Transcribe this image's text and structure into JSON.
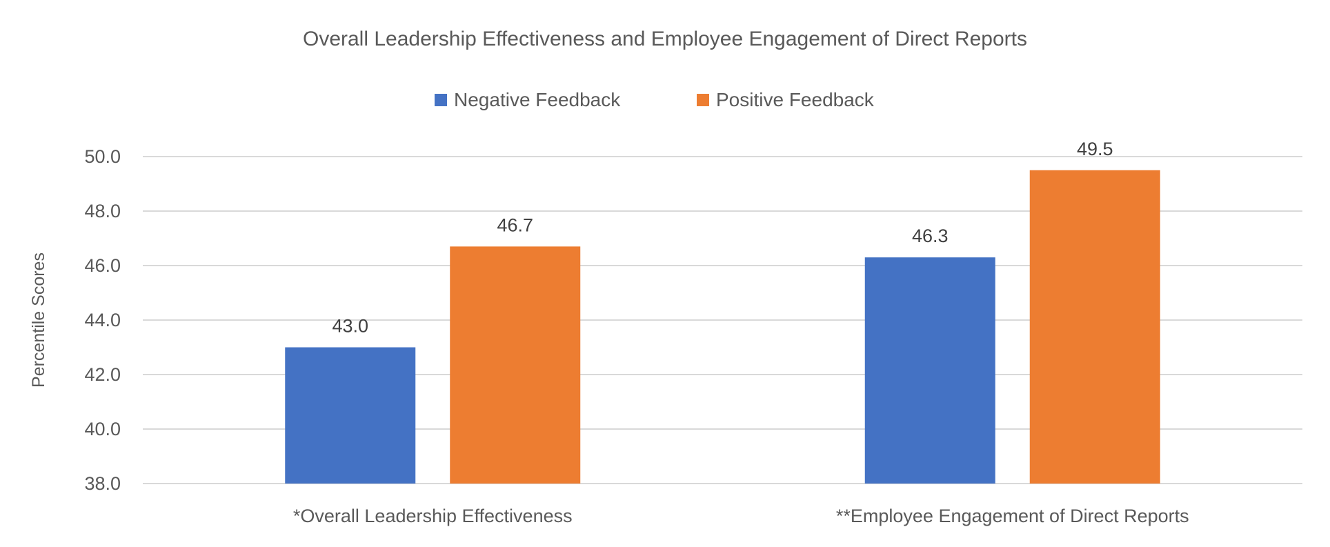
{
  "chart_data": {
    "type": "bar",
    "title": "Overall Leadership Effectiveness and Employee Engagement of Direct Reports",
    "xlabel": "",
    "ylabel": "Percentile Scores",
    "ylim": [
      38.0,
      50.0
    ],
    "yticks": [
      "38.0",
      "40.0",
      "42.0",
      "44.0",
      "46.0",
      "48.0",
      "50.0"
    ],
    "grid": true,
    "legend_position": "top",
    "categories": [
      "*Overall Leadership Effectiveness",
      "**Employee Engagement of Direct Reports"
    ],
    "series": [
      {
        "name": "Negative Feedback",
        "values": [
          43.0,
          46.3
        ],
        "labels": [
          "43.0",
          "46.3"
        ],
        "color": "#4472C4"
      },
      {
        "name": "Positive Feedback",
        "values": [
          46.7,
          49.5
        ],
        "labels": [
          "46.7",
          "49.5"
        ],
        "color": "#ED7D31"
      }
    ]
  }
}
